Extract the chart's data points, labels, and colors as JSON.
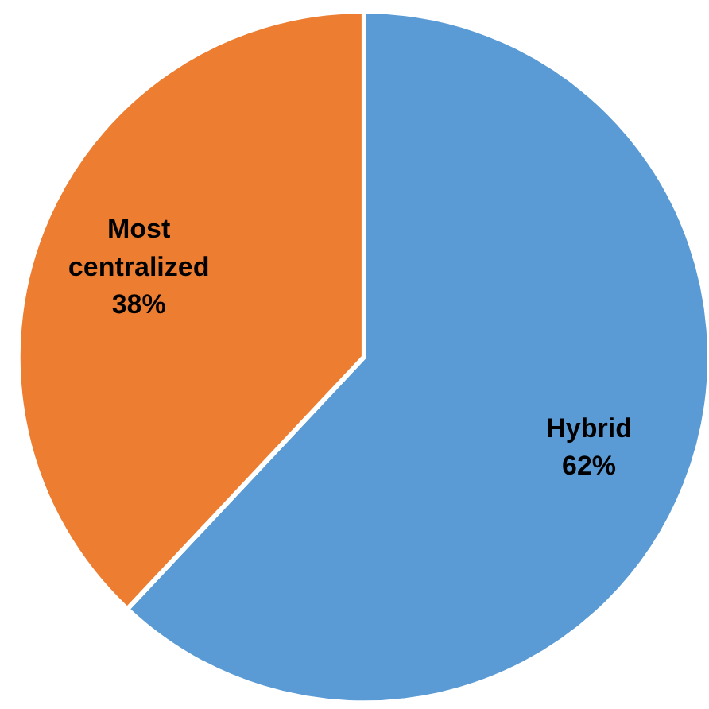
{
  "chart_data": {
    "type": "pie",
    "categories": [
      "Hybrid",
      "Most centralized"
    ],
    "values": [
      62,
      38
    ],
    "colors": [
      "#5b9bd5",
      "#ed7d31"
    ],
    "value_labels": [
      "62%",
      "38%"
    ]
  }
}
